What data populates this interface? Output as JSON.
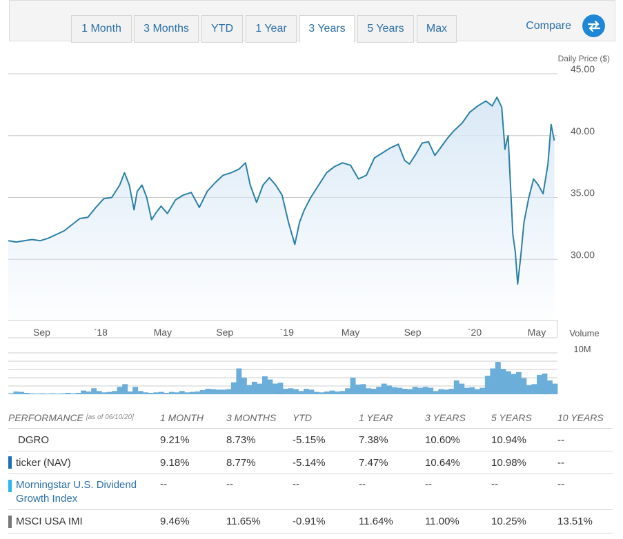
{
  "tabs": [
    {
      "label": "1 Month",
      "active": false
    },
    {
      "label": "3 Months",
      "active": false
    },
    {
      "label": "YTD",
      "active": false
    },
    {
      "label": "1 Year",
      "active": false
    },
    {
      "label": "3 Years",
      "active": true
    },
    {
      "label": "5 Years",
      "active": false
    },
    {
      "label": "Max",
      "active": false
    }
  ],
  "compare_label": "Compare",
  "colors": {
    "line": "#2a7fa6",
    "area_top": "#d8e8f6",
    "volume": "#6aaed9",
    "link": "#2a6fa8",
    "accent": "#1f87d6"
  },
  "chart_data": [
    {
      "type": "area",
      "title": "",
      "ylabel": "Daily Price ($)",
      "ylim": [
        25.0,
        45.0
      ],
      "yticks": [
        "45.00",
        "40.00",
        "35.00",
        "30.00"
      ],
      "ytick_values": [
        45,
        40,
        35,
        30
      ],
      "xtick_labels": [
        "Sep",
        "`18",
        "May",
        "Sep",
        "`19",
        "May",
        "Sep",
        "`20",
        "May"
      ],
      "xtick_positions": [
        2.1,
        5.8,
        9.7,
        13.6,
        17.5,
        21.5,
        25.4,
        29.3,
        33.2
      ],
      "x_range": [
        0,
        34.5
      ],
      "series": [
        {
          "name": "DGRO Daily Price",
          "points": [
            [
              0,
              31.5
            ],
            [
              0.5,
              31.4
            ],
            [
              1,
              31.5
            ],
            [
              1.5,
              31.6
            ],
            [
              2,
              31.5
            ],
            [
              2.5,
              31.7
            ],
            [
              3,
              32.0
            ],
            [
              3.5,
              32.3
            ],
            [
              4,
              32.8
            ],
            [
              4.5,
              33.3
            ],
            [
              5,
              33.4
            ],
            [
              5.5,
              34.2
            ],
            [
              6,
              34.9
            ],
            [
              6.5,
              35.0
            ],
            [
              7,
              36.0
            ],
            [
              7.3,
              37.0
            ],
            [
              7.6,
              36.0
            ],
            [
              7.9,
              34.0
            ],
            [
              8.1,
              35.5
            ],
            [
              8.4,
              36.0
            ],
            [
              8.7,
              35.0
            ],
            [
              9.0,
              33.2
            ],
            [
              9.3,
              33.8
            ],
            [
              9.6,
              34.3
            ],
            [
              10.0,
              33.7
            ],
            [
              10.5,
              34.8
            ],
            [
              11.0,
              35.2
            ],
            [
              11.5,
              35.4
            ],
            [
              12.0,
              34.2
            ],
            [
              12.5,
              35.5
            ],
            [
              13.0,
              36.2
            ],
            [
              13.5,
              36.8
            ],
            [
              14.0,
              37.0
            ],
            [
              14.5,
              37.3
            ],
            [
              14.9,
              37.8
            ],
            [
              15.2,
              36.0
            ],
            [
              15.6,
              34.6
            ],
            [
              16.0,
              36.0
            ],
            [
              16.4,
              36.6
            ],
            [
              16.8,
              36.0
            ],
            [
              17.2,
              35.2
            ],
            [
              17.6,
              33.0
            ],
            [
              18.0,
              31.2
            ],
            [
              18.3,
              33.0
            ],
            [
              18.6,
              34.0
            ],
            [
              19.0,
              35.0
            ],
            [
              19.5,
              36.0
            ],
            [
              20.0,
              37.0
            ],
            [
              20.5,
              37.5
            ],
            [
              21.0,
              37.8
            ],
            [
              21.5,
              37.6
            ],
            [
              22.0,
              36.5
            ],
            [
              22.5,
              36.8
            ],
            [
              23.0,
              38.2
            ],
            [
              23.5,
              38.6
            ],
            [
              24.0,
              39.0
            ],
            [
              24.5,
              39.3
            ],
            [
              24.9,
              38.0
            ],
            [
              25.2,
              37.7
            ],
            [
              25.6,
              38.5
            ],
            [
              26.0,
              39.4
            ],
            [
              26.4,
              39.5
            ],
            [
              26.8,
              38.4
            ],
            [
              27.2,
              39.1
            ],
            [
              27.6,
              39.8
            ],
            [
              28.0,
              40.4
            ],
            [
              28.5,
              41.0
            ],
            [
              29.0,
              41.9
            ],
            [
              29.5,
              42.4
            ],
            [
              30.0,
              42.8
            ],
            [
              30.4,
              42.4
            ],
            [
              30.7,
              43.1
            ],
            [
              31.0,
              42.3
            ],
            [
              31.2,
              38.9
            ],
            [
              31.4,
              40.0
            ],
            [
              31.55,
              36.0
            ],
            [
              31.7,
              32.0
            ],
            [
              31.85,
              30.6
            ],
            [
              32.0,
              28.0
            ],
            [
              32.2,
              30.3
            ],
            [
              32.4,
              33.0
            ],
            [
              32.7,
              35.0
            ],
            [
              33.0,
              36.5
            ],
            [
              33.3,
              36.0
            ],
            [
              33.6,
              35.3
            ],
            [
              33.9,
              37.7
            ],
            [
              34.1,
              40.9
            ],
            [
              34.3,
              39.6
            ]
          ]
        }
      ]
    },
    {
      "type": "bar",
      "title": "",
      "ylabel": "Volume",
      "ytick_label": "10M",
      "ylim": [
        0,
        10
      ],
      "bars": [
        0.2,
        0.6,
        0.5,
        0.3,
        0.2,
        0.1,
        0.2,
        0.1,
        0.2,
        0.1,
        0.2,
        0.3,
        0.2,
        0.3,
        0.8,
        0.6,
        1.3,
        0.7,
        0.4,
        0.5,
        0.7,
        1.6,
        2.2,
        0.6,
        1.6,
        0.7,
        0.4,
        0.3,
        0.4,
        0.5,
        0.3,
        0.5,
        0.4,
        0.7,
        0.4,
        0.5,
        0.6,
        0.9,
        1.2,
        1.1,
        1.0,
        1.0,
        1.1,
        2.6,
        5.6,
        3.6,
        2.0,
        2.7,
        2.3,
        3.9,
        3.2,
        2.3,
        2.5,
        1.2,
        1.3,
        1.1,
        0.7,
        1.2,
        1.0,
        0.5,
        0.4,
        0.6,
        0.8,
        0.6,
        0.7,
        1.3,
        3.6,
        2.1,
        2.2,
        1.3,
        1.2,
        1.6,
        2.3,
        1.9,
        1.5,
        1.4,
        1.2,
        1.1,
        1.6,
        1.4,
        1.6,
        1.4,
        0.7,
        1.1,
        1.0,
        1.2,
        3.0,
        2.3,
        1.4,
        1.5,
        1.1,
        1.4,
        4.0,
        5.6,
        7.0,
        5.5,
        5.0,
        4.4,
        4.8,
        3.5,
        2.0,
        2.2,
        4.2,
        4.5,
        3.0,
        2.3
      ]
    }
  ],
  "performance": {
    "header": {
      "label": "PERFORMANCE",
      "as_of": "[as of 06/10/20]",
      "cols": [
        "1 MONTH",
        "3 MONTHS",
        "YTD",
        "1 YEAR",
        "3 YEARS",
        "5 YEARS",
        "10 YEARS"
      ]
    },
    "rows": [
      {
        "name": "DGRO",
        "swatch": "",
        "link": false,
        "values": [
          "9.21%",
          "8.73%",
          "-5.15%",
          "7.38%",
          "10.60%",
          "10.94%",
          "--"
        ]
      },
      {
        "name": "ticker (NAV)",
        "swatch": "#1c6fb5",
        "link": false,
        "values": [
          "9.18%",
          "8.77%",
          "-5.14%",
          "7.47%",
          "10.64%",
          "10.98%",
          "--"
        ]
      },
      {
        "name": "Morningstar U.S. Dividend Growth Index",
        "swatch": "#2bb8e8",
        "link": true,
        "values": [
          "--",
          "--",
          "--",
          "--",
          "--",
          "--",
          "--"
        ]
      },
      {
        "name": "MSCI USA IMI",
        "swatch": "#777777",
        "link": false,
        "values": [
          "9.46%",
          "11.65%",
          "-0.91%",
          "11.64%",
          "11.00%",
          "10.25%",
          "13.51%"
        ]
      }
    ]
  }
}
